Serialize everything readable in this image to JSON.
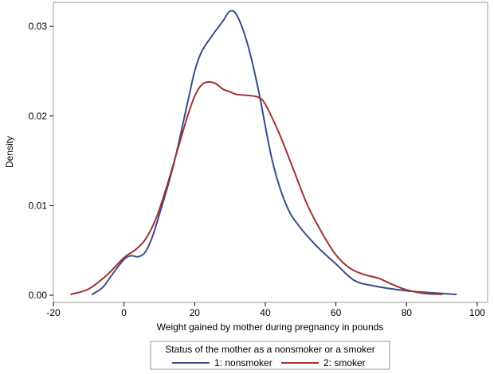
{
  "chart_data": {
    "type": "line",
    "title": "",
    "xlabel": "Weight gained by mother during pregnancy in pounds",
    "ylabel": "Density",
    "xlim": [
      -20,
      100
    ],
    "ylim": [
      0,
      0.0325
    ],
    "x_ticks": [
      -20,
      0,
      20,
      40,
      60,
      80,
      100
    ],
    "x_tick_labels": [
      "-20",
      "0",
      "20",
      "40",
      "60",
      "80",
      "100"
    ],
    "y_ticks": [
      0,
      0.01,
      0.02,
      0.03
    ],
    "y_tick_labels": [
      "0.00",
      "0.01",
      "0.02",
      "0.03"
    ],
    "grid": false,
    "legend": {
      "title": "Status of the mother as a nonsmoker or a smoker",
      "placement": "bottom"
    },
    "series": [
      {
        "name": "1: nonsmoker",
        "color": "#3a4b8f",
        "x": [
          -9,
          -6,
          -3,
          0,
          2,
          4,
          6,
          8,
          10,
          14,
          18,
          20,
          22,
          25,
          28,
          30,
          32,
          35,
          38,
          42,
          46,
          50,
          55,
          60,
          65,
          70,
          80,
          90,
          94
        ],
        "y": [
          0.0001,
          0.0009,
          0.0025,
          0.004,
          0.0044,
          0.0043,
          0.0048,
          0.0065,
          0.009,
          0.0145,
          0.0215,
          0.025,
          0.0272,
          0.029,
          0.0306,
          0.0317,
          0.0312,
          0.028,
          0.023,
          0.015,
          0.01,
          0.0075,
          0.0053,
          0.0035,
          0.0017,
          0.0011,
          0.0005,
          0.0002,
          0.0001
        ]
      },
      {
        "name": "2: smoker",
        "color": "#a0332f",
        "x": [
          -15,
          -10,
          -5,
          0,
          3,
          6,
          9,
          12,
          15,
          18,
          20,
          22,
          24,
          26,
          28,
          30,
          32,
          35,
          38,
          40,
          44,
          48,
          52,
          56,
          60,
          64,
          68,
          72,
          76,
          80,
          85,
          90
        ],
        "y": [
          0.0001,
          0.0007,
          0.0022,
          0.0042,
          0.005,
          0.0062,
          0.0085,
          0.012,
          0.016,
          0.02,
          0.0222,
          0.0235,
          0.0238,
          0.0236,
          0.023,
          0.0227,
          0.0224,
          0.0223,
          0.0221,
          0.0213,
          0.018,
          0.014,
          0.01,
          0.007,
          0.0045,
          0.003,
          0.0023,
          0.0019,
          0.0012,
          0.0006,
          0.0002,
          0.0001
        ]
      }
    ]
  }
}
